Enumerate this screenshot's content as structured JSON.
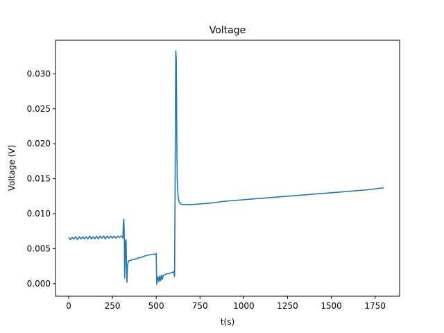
{
  "chart_data": {
    "type": "line",
    "title": "Voltage",
    "xlabel": "t(s)",
    "ylabel": "Voltage (V)",
    "xlim": [
      -75,
      1890
    ],
    "ylim": [
      -0.0018,
      0.0348
    ],
    "grid": false,
    "color": "#1f77b4",
    "x_ticks": [
      0,
      250,
      500,
      750,
      1000,
      1250,
      1500,
      1750
    ],
    "y_ticks": [
      0.0,
      0.005,
      0.01,
      0.015,
      0.02,
      0.025,
      0.03
    ],
    "series": [
      {
        "x": [
          0,
          10,
          20,
          30,
          40,
          50,
          60,
          70,
          80,
          90,
          100,
          110,
          120,
          130,
          140,
          150,
          160,
          170,
          180,
          190,
          200,
          210,
          220,
          230,
          240,
          250,
          260,
          270,
          280,
          290,
          300,
          305,
          310,
          312,
          315,
          318,
          320,
          322,
          325,
          328,
          330,
          333,
          336,
          340,
          345,
          350,
          360,
          380,
          400,
          420,
          440,
          460,
          480,
          490,
          500,
          503,
          506,
          510,
          515,
          520,
          525,
          530,
          535,
          540,
          545,
          550,
          560,
          580,
          600,
          605,
          608,
          610,
          612,
          615,
          618,
          620,
          625,
          630,
          640,
          650,
          660,
          680,
          700,
          750,
          800,
          900,
          1000,
          1100,
          1200,
          1300,
          1400,
          1500,
          1600,
          1700,
          1800
        ],
        "y": [
          0.0066,
          0.0063,
          0.0066,
          0.0064,
          0.0067,
          0.0063,
          0.0067,
          0.0064,
          0.0067,
          0.0064,
          0.0067,
          0.0064,
          0.0068,
          0.0064,
          0.0067,
          0.0064,
          0.0068,
          0.0064,
          0.0068,
          0.0065,
          0.0068,
          0.0064,
          0.0068,
          0.0065,
          0.0068,
          0.0065,
          0.0068,
          0.0065,
          0.0068,
          0.0066,
          0.0068,
          0.0068,
          0.0065,
          0.0085,
          0.0092,
          0.007,
          0.0008,
          0.003,
          0.006,
          0.0063,
          0.003,
          0.0002,
          0.0025,
          0.0031,
          0.0033,
          0.0033,
          0.0034,
          0.0035,
          0.0037,
          0.0038,
          0.004,
          0.0041,
          0.0042,
          0.0042,
          0.0043,
          -0.0001,
          0.0005,
          0.001,
          0.0003,
          0.0011,
          0.0004,
          0.0012,
          0.0006,
          0.0012,
          0.0012,
          0.0013,
          0.0014,
          0.0015,
          0.0017,
          0.001,
          0.014,
          0.025,
          0.0333,
          0.032,
          0.02,
          0.015,
          0.0125,
          0.0117,
          0.0114,
          0.0113,
          0.0113,
          0.0113,
          0.0113,
          0.0114,
          0.0115,
          0.0118,
          0.012,
          0.0122,
          0.0124,
          0.0126,
          0.0128,
          0.013,
          0.0132,
          0.0134,
          0.0137
        ]
      }
    ]
  }
}
